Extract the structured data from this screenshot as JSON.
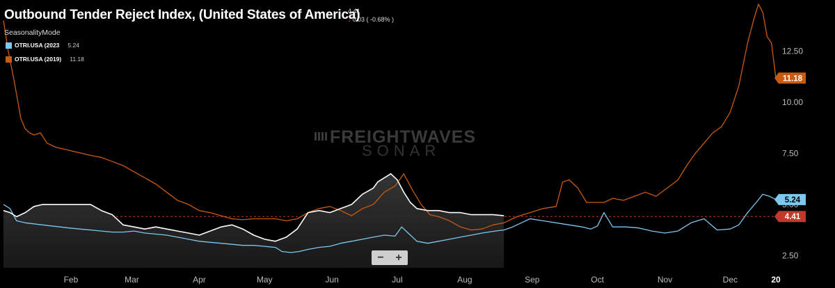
{
  "header": {
    "title": "Outbound  Tender Reject Index, (United States of America)",
    "current_value": "4.41",
    "change": "0.03 ( -0.68% )",
    "mode": "SeasonalityMode"
  },
  "legend": [
    {
      "label": "OTRI.USA (2023",
      "value": "5.24",
      "color": "#7dc8f0"
    },
    {
      "label": "OTRI.USA (2019)",
      "value": "11.18",
      "color": "#c85a12"
    }
  ],
  "watermark": {
    "line1": "FREIGHTWAVES",
    "line2": "SONAR"
  },
  "zoom": {
    "minus": "−",
    "plus": "+"
  },
  "colors": {
    "current": "#ffffff",
    "y2023": "#7dc8f0",
    "y2019": "#c85a12",
    "price_line": "#c0392b"
  },
  "chart_data": {
    "type": "line",
    "xlabel": "",
    "ylabel": "",
    "xlim": [
      0,
      355
    ],
    "ylim": [
      1.9,
      15.0
    ],
    "y_ticks": [
      2.5,
      5.0,
      7.5,
      10.0,
      12.5
    ],
    "y_tick_labels": [
      "2.50",
      "5.00",
      "7.50",
      "10.00",
      "12.50"
    ],
    "x_ticks": [
      31,
      59,
      90,
      120,
      151,
      181,
      212,
      243,
      273,
      304,
      334,
      355
    ],
    "x_tick_labels": [
      "Feb",
      "Mar",
      "Apr",
      "May",
      "Jun",
      "Jul",
      "Aug",
      "Sep",
      "Oct",
      "Nov",
      "Dec",
      "20"
    ],
    "price_line": 4.41,
    "end_labels": [
      {
        "text": "11.18",
        "value": 11.18,
        "color": "#c85a12"
      },
      {
        "text": "5.24",
        "value": 5.24,
        "color": "#7dc8f0"
      },
      {
        "text": "4.41",
        "value": 4.41,
        "color": "#c0392b"
      }
    ],
    "series": [
      {
        "name": "OTRI.USA (2023",
        "x": [
          0,
          3,
          6,
          10,
          14,
          18,
          22,
          26,
          30,
          35,
          40,
          45,
          50,
          55,
          60,
          65,
          70,
          75,
          80,
          85,
          90,
          95,
          100,
          105,
          110,
          115,
          120,
          125,
          128,
          132,
          136,
          140,
          145,
          150,
          155,
          160,
          165,
          170,
          175,
          180,
          183,
          186,
          190,
          195,
          200,
          205,
          210,
          215,
          220,
          226,
          230,
          234,
          238,
          242,
          248,
          254,
          260,
          266,
          270,
          273,
          276,
          280,
          286,
          292,
          298,
          304,
          310,
          316,
          322,
          328,
          334,
          338,
          342,
          346,
          349,
          352,
          355
        ],
        "y": [
          5.0,
          4.8,
          4.2,
          4.1,
          4.05,
          4.0,
          3.95,
          3.9,
          3.85,
          3.8,
          3.75,
          3.7,
          3.65,
          3.65,
          3.7,
          3.6,
          3.55,
          3.5,
          3.4,
          3.3,
          3.2,
          3.15,
          3.1,
          3.05,
          3.0,
          3.0,
          2.95,
          2.9,
          2.7,
          2.65,
          2.7,
          2.8,
          2.9,
          2.95,
          3.1,
          3.2,
          3.3,
          3.4,
          3.5,
          3.45,
          3.9,
          3.6,
          3.2,
          3.1,
          3.2,
          3.3,
          3.4,
          3.5,
          3.6,
          3.7,
          3.75,
          3.9,
          4.1,
          4.3,
          4.2,
          4.1,
          4.0,
          3.9,
          3.8,
          3.95,
          4.6,
          3.9,
          3.9,
          3.85,
          3.7,
          3.6,
          3.7,
          4.1,
          4.3,
          3.75,
          3.8,
          4.0,
          4.6,
          5.1,
          5.5,
          5.4,
          5.24
        ]
      },
      {
        "name": "OTRI.USA (2019)",
        "x": [
          0,
          2,
          5,
          8,
          10,
          12,
          14,
          17,
          20,
          24,
          28,
          32,
          36,
          40,
          45,
          50,
          55,
          60,
          65,
          70,
          75,
          80,
          85,
          90,
          95,
          100,
          105,
          110,
          115,
          120,
          125,
          130,
          135,
          140,
          145,
          150,
          155,
          160,
          165,
          170,
          175,
          180,
          184,
          188,
          192,
          196,
          200,
          205,
          210,
          215,
          220,
          225,
          230,
          236,
          242,
          248,
          254,
          257,
          260,
          264,
          268,
          272,
          276,
          280,
          285,
          290,
          295,
          300,
          305,
          310,
          314,
          318,
          322,
          326,
          330,
          334,
          338,
          342,
          345,
          347,
          349,
          351,
          353,
          355
        ],
        "y": [
          14.0,
          12.6,
          11.0,
          9.2,
          8.7,
          8.5,
          8.4,
          8.5,
          8.0,
          7.8,
          7.7,
          7.6,
          7.5,
          7.4,
          7.3,
          7.1,
          6.9,
          6.6,
          6.3,
          6.0,
          5.6,
          5.2,
          5.0,
          4.7,
          4.6,
          4.45,
          4.3,
          4.25,
          4.3,
          4.3,
          4.3,
          4.2,
          4.3,
          4.6,
          4.8,
          4.9,
          4.7,
          4.45,
          4.8,
          5.0,
          5.6,
          5.9,
          6.5,
          5.7,
          5.0,
          4.5,
          4.4,
          4.2,
          3.9,
          3.75,
          3.8,
          4.0,
          4.1,
          4.4,
          4.6,
          4.8,
          4.9,
          6.1,
          6.2,
          5.8,
          5.1,
          5.1,
          5.1,
          5.3,
          5.2,
          5.4,
          5.6,
          5.4,
          5.8,
          6.2,
          6.9,
          7.5,
          8.0,
          8.5,
          8.8,
          9.5,
          10.8,
          12.9,
          14.1,
          14.8,
          14.4,
          13.2,
          12.9,
          11.18
        ]
      },
      {
        "name": "",
        "x": [
          0,
          3,
          6,
          10,
          14,
          18,
          22,
          26,
          30,
          35,
          40,
          45,
          50,
          55,
          60,
          65,
          70,
          75,
          80,
          85,
          90,
          95,
          100,
          105,
          110,
          115,
          120,
          125,
          130,
          135,
          140,
          145,
          150,
          155,
          160,
          165,
          170,
          172,
          175,
          178,
          181,
          184,
          187,
          190,
          195,
          200,
          205,
          210,
          215,
          220,
          225,
          230
        ],
        "y": [
          4.7,
          4.6,
          4.4,
          4.6,
          4.9,
          5.0,
          5.0,
          5.0,
          5.0,
          5.0,
          5.0,
          4.7,
          4.5,
          4.0,
          3.9,
          3.8,
          3.9,
          3.8,
          3.7,
          3.6,
          3.5,
          3.7,
          3.9,
          4.0,
          3.8,
          3.5,
          3.3,
          3.2,
          3.4,
          3.8,
          4.6,
          4.7,
          4.6,
          4.8,
          5.0,
          5.5,
          5.8,
          6.1,
          6.3,
          6.5,
          6.2,
          5.6,
          5.1,
          4.8,
          4.7,
          4.7,
          4.6,
          4.6,
          4.5,
          4.5,
          4.5,
          4.45
        ]
      }
    ]
  }
}
